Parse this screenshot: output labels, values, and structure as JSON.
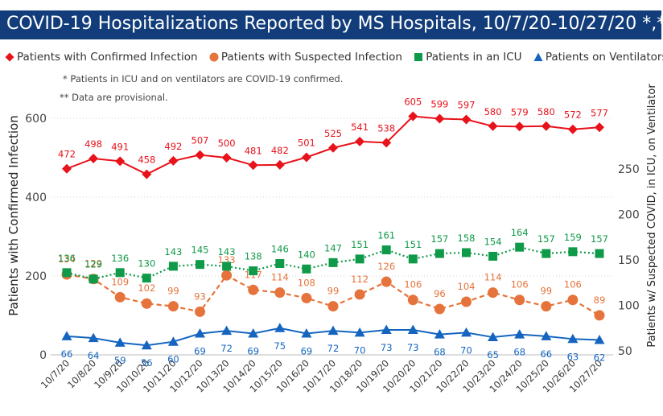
{
  "title": "COVID-19 Hospitalizations Reported by MS Hospitals, 10/7/20-10/27/20 *,**",
  "notes": [
    "* Patients in ICU and on ventilators are COVID-19 confirmed.",
    "** Data are provisional."
  ],
  "colors": {
    "title_bg": "#123d7a",
    "confirmed": "#e8121b",
    "suspected": "#e5733b",
    "icu": "#0e9a48",
    "vent": "#1565c0",
    "grid": "#d0d0d0"
  },
  "chart_data": {
    "type": "line",
    "categories": [
      "10/7/20",
      "10/8/20",
      "10/9/20",
      "10/10/20",
      "10/11/20",
      "10/12/20",
      "10/13/20",
      "10/14/20",
      "10/15/20",
      "10/16/20",
      "10/17/20",
      "10/18/20",
      "10/19/20",
      "10/20/20",
      "10/21/20",
      "10/22/20",
      "10/23/20",
      "10/24/20",
      "10/25/20",
      "10/26/20",
      "10/27/20"
    ],
    "ylabel_left": "Patients with Confirmed Infection",
    "ylabel_right": "Patients w/ Suspected COVID, in ICU, on Ventilator",
    "ylim_left": [
      0,
      650
    ],
    "ylim_right": [
      50,
      270
    ],
    "yticks_left": [
      0,
      200,
      400,
      600
    ],
    "yticks_right": [
      50,
      100,
      150,
      200,
      250
    ],
    "grid": true,
    "legend_position": "top",
    "series": [
      {
        "name": "Patients with Confirmed Infection",
        "axis": "left",
        "marker": "diamond",
        "line": "solid",
        "values": [
          472,
          498,
          491,
          458,
          492,
          507,
          500,
          481,
          482,
          501,
          525,
          541,
          538,
          605,
          599,
          597,
          580,
          579,
          580,
          572,
          577
        ]
      },
      {
        "name": "Patients with Suspected Infection",
        "axis": "right",
        "marker": "circle",
        "line": "dashed",
        "values": [
          134,
          129,
          109,
          102,
          99,
          93,
          133,
          117,
          114,
          108,
          99,
          112,
          126,
          106,
          96,
          104,
          114,
          106,
          99,
          106,
          89
        ]
      },
      {
        "name": "Patients in an ICU",
        "axis": "right",
        "marker": "square",
        "line": "dotted",
        "values": [
          136,
          129,
          136,
          130,
          143,
          145,
          143,
          138,
          146,
          140,
          147,
          151,
          161,
          151,
          157,
          158,
          154,
          164,
          157,
          159,
          157
        ]
      },
      {
        "name": "Patients on Ventilators",
        "axis": "right",
        "marker": "triangle",
        "line": "solid",
        "values": [
          66,
          64,
          59,
          56,
          60,
          69,
          72,
          69,
          75,
          69,
          72,
          70,
          73,
          73,
          68,
          70,
          65,
          68,
          66,
          63,
          62
        ]
      }
    ]
  }
}
